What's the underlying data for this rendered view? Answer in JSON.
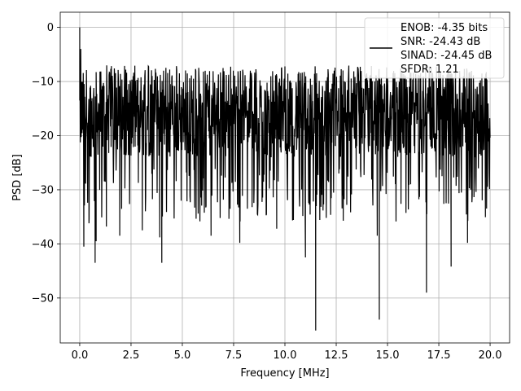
{
  "chart_data": {
    "type": "line",
    "xlabel": "Frequency [MHz]",
    "ylabel": "PSD [dB]",
    "xlim": [
      -0.95,
      20.95
    ],
    "ylim": [
      -58.3,
      2.8
    ],
    "x_ticks": [
      0.0,
      2.5,
      5.0,
      7.5,
      10.0,
      12.5,
      15.0,
      17.5,
      20.0
    ],
    "x_tick_labels": [
      "0.0",
      "2.5",
      "5.0",
      "7.5",
      "10.0",
      "12.5",
      "15.0",
      "17.5",
      "20.0"
    ],
    "y_ticks": [
      0,
      -10,
      -20,
      -30,
      -40,
      -50
    ],
    "y_tick_labels": [
      "0",
      "−10",
      "−20",
      "−30",
      "−40",
      "−50"
    ],
    "grid": true,
    "legend_position": "upper-right",
    "legend_entries": [
      "ENOB: -4.35 bits",
      "SNR: -24.43 dB",
      "SINAD: -24.45 dB",
      "SFDR: 1.21"
    ],
    "series": [
      {
        "color": "#000000",
        "style": "noise spectrum, dense black trace",
        "x_range": [
          0.0,
          20.0
        ],
        "typical_band": [
          -24,
          -8
        ],
        "peak_points": [
          [
            0.0,
            0.0
          ],
          [
            0.05,
            -4
          ]
        ],
        "dip_points": [
          [
            0.2,
            -40.5
          ],
          [
            0.45,
            -36.2
          ],
          [
            0.75,
            -43.5
          ],
          [
            0.8,
            -39.5
          ],
          [
            1.3,
            -36.8
          ],
          [
            1.95,
            -38.5
          ],
          [
            3.05,
            -37.5
          ],
          [
            3.9,
            -38.8
          ],
          [
            4.0,
            -43.5
          ],
          [
            6.4,
            -38.5
          ],
          [
            7.8,
            -39.8
          ],
          [
            9.6,
            -37.2
          ],
          [
            11.0,
            -42.5
          ],
          [
            11.5,
            -56.0
          ],
          [
            14.6,
            -54.0
          ],
          [
            14.5,
            -38.5
          ],
          [
            16.9,
            -49.0
          ],
          [
            18.1,
            -44.2
          ],
          [
            18.9,
            -39.8
          ]
        ]
      }
    ]
  }
}
